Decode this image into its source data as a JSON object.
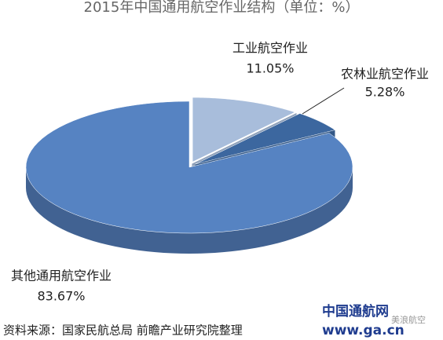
{
  "chart_data": {
    "type": "pie",
    "title": "2015年中国通用航空作业结构（单位：%）",
    "categories": [
      "工业航空作业",
      "农林业航空作业",
      "其他通用航空作业"
    ],
    "values": [
      11.05,
      5.28,
      83.67
    ],
    "value_labels": [
      "11.05%",
      "5.28%",
      "83.67%"
    ],
    "colors": [
      "#a8bddb",
      "#3c679f",
      "#5683c2"
    ],
    "source": "资料来源：国家民航总局 前瞻产业研究院整理",
    "watermark": [
      "中国通航网",
      "www.ga.cn",
      "美浪航空"
    ]
  }
}
